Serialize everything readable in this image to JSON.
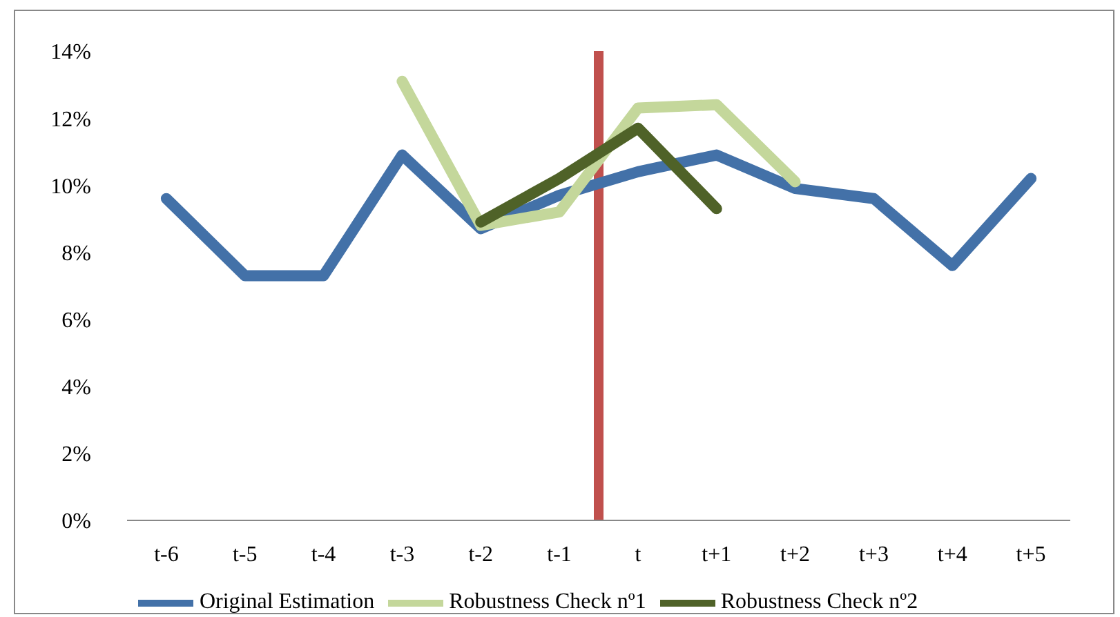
{
  "chart_data": {
    "type": "line",
    "categories": [
      "t-6",
      "t-5",
      "t-4",
      "t-3",
      "t-2",
      "t-1",
      "t",
      "t+1",
      "t+2",
      "t+3",
      "t+4",
      "t+5"
    ],
    "ylim": [
      0,
      14
    ],
    "yticks": [
      {
        "value": 0,
        "label": "0%"
      },
      {
        "value": 2,
        "label": "2%"
      },
      {
        "value": 4,
        "label": "4%"
      },
      {
        "value": 6,
        "label": "6%"
      },
      {
        "value": 8,
        "label": "8%"
      },
      {
        "value": 10,
        "label": "10%"
      },
      {
        "value": 12,
        "label": "12%"
      },
      {
        "value": 14,
        "label": "14%"
      }
    ],
    "series": [
      {
        "name": "Original Estimation",
        "color": "#4371a8",
        "values": [
          9.6,
          7.3,
          7.3,
          10.9,
          8.7,
          9.7,
          10.4,
          10.9,
          9.9,
          9.6,
          7.6,
          10.2
        ]
      },
      {
        "name": "Robustness Check nº1",
        "color": "#c4d79b",
        "values": [
          null,
          null,
          null,
          13.1,
          8.8,
          9.2,
          12.3,
          12.4,
          10.1,
          null,
          null,
          null
        ]
      },
      {
        "name": "Robustness Check nº2",
        "color": "#4f6228",
        "values": [
          null,
          null,
          null,
          null,
          8.9,
          10.2,
          11.7,
          9.3,
          null,
          null,
          null,
          null
        ]
      }
    ],
    "ref_lines": [
      {
        "axis": "x",
        "value": "t",
        "color": "#c0504d"
      }
    ],
    "grid": false,
    "legend": "bottom",
    "marker": "none",
    "line_style": "solid"
  }
}
